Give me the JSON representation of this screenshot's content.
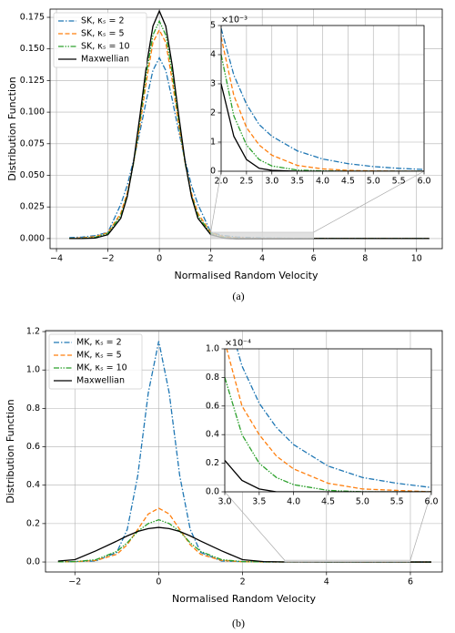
{
  "chart_data": [
    {
      "type": "line",
      "xlabel": "Normalised Random Velocity",
      "ylabel": "Distribution Function",
      "caption": "(a)",
      "x": [
        -3.5,
        -3,
        -2.5,
        -2,
        -1.5,
        -1.25,
        -1,
        -0.75,
        -0.5,
        -0.25,
        0,
        0.25,
        0.5,
        0.75,
        1,
        1.25,
        1.5,
        2,
        2.5,
        3,
        4,
        6,
        8,
        10.5
      ],
      "series": [
        {
          "name": "SK, κₛ = 2",
          "color": "#1f77b4",
          "linestyle": "dashdot",
          "values": [
            0.0007,
            0.0012,
            0.0023,
            0.0049,
            0.027,
            0.042,
            0.062,
            0.085,
            0.11,
            0.133,
            0.143,
            0.133,
            0.11,
            0.085,
            0.062,
            0.042,
            0.027,
            0.0049,
            0.0023,
            0.0012,
            0.00042,
            6e-05,
            1e-05,
            0
          ]
        },
        {
          "name": "SK, κₛ = 5",
          "color": "#ff7f0e",
          "linestyle": "dashed",
          "values": [
            0.0001,
            0.00055,
            0.0015,
            0.0046,
            0.02,
            0.036,
            0.06,
            0.09,
            0.125,
            0.155,
            0.165,
            0.155,
            0.125,
            0.09,
            0.06,
            0.036,
            0.02,
            0.0046,
            0.0015,
            0.00055,
            8e-05,
            0,
            0,
            0
          ]
        },
        {
          "name": "SK, κₛ = 10",
          "color": "#2ca02c",
          "linestyle": "dashdotdot",
          "values": [
            0,
            0.00018,
            0.0009,
            0.004,
            0.018,
            0.034,
            0.06,
            0.094,
            0.131,
            0.161,
            0.172,
            0.161,
            0.131,
            0.094,
            0.06,
            0.034,
            0.018,
            0.004,
            0.0009,
            0.00018,
            1e-05,
            0,
            0,
            0
          ]
        },
        {
          "name": "Maxwellian",
          "color": "#000000",
          "linestyle": "solid",
          "values": [
            0,
            3e-05,
            0.0004,
            0.003,
            0.016,
            0.033,
            0.061,
            0.098,
            0.137,
            0.168,
            0.18,
            0.168,
            0.137,
            0.098,
            0.061,
            0.033,
            0.016,
            0.003,
            0.0004,
            3e-05,
            0,
            0,
            0,
            0
          ]
        }
      ],
      "xlim": [
        -4.25,
        11
      ],
      "ylim": [
        -0.008,
        0.1815
      ],
      "xticks": [
        {
          "value": -4,
          "label": "−4"
        },
        {
          "value": -2,
          "label": "−2"
        },
        0,
        2,
        4,
        6,
        8,
        10
      ],
      "yticks": [
        {
          "value": 0,
          "label": "0.000"
        },
        {
          "value": 0.025,
          "label": "0.025"
        },
        {
          "value": 0.05,
          "label": "0.050"
        },
        {
          "value": 0.075,
          "label": "0.075"
        },
        {
          "value": 0.1,
          "label": "0.100"
        },
        {
          "value": 0.125,
          "label": "0.125"
        },
        {
          "value": 0.15,
          "label": "0.150"
        },
        {
          "value": 0.175,
          "label": "0.175"
        }
      ],
      "grid": true,
      "legend": "upper left"
    },
    {
      "type": "line",
      "offset_text": "×10⁻³",
      "x": [
        2,
        2.25,
        2.5,
        2.75,
        3,
        3.5,
        4,
        4.5,
        5,
        5.5,
        6
      ],
      "series": [
        {
          "color": "#1f77b4",
          "linestyle": "dashdot",
          "values": [
            0.0049,
            0.0033,
            0.0023,
            0.0016,
            0.0012,
            0.0007,
            0.00042,
            0.00026,
            0.00016,
            0.0001,
            6e-05
          ]
        },
        {
          "color": "#ff7f0e",
          "linestyle": "dashed",
          "values": [
            0.0046,
            0.0026,
            0.0015,
            0.0009,
            0.00055,
            0.0002,
            8e-05,
            3e-05,
            1e-05,
            0,
            0
          ]
        },
        {
          "color": "#2ca02c",
          "linestyle": "dashdotdot",
          "values": [
            0.004,
            0.0019,
            0.0009,
            0.0004,
            0.00018,
            4e-05,
            1e-05,
            0,
            0,
            0,
            0
          ]
        },
        {
          "color": "#000000",
          "linestyle": "solid",
          "values": [
            0.003,
            0.0012,
            0.0004,
            0.0001,
            3e-05,
            0,
            0,
            0,
            0,
            0,
            0
          ]
        }
      ],
      "xlim": [
        2,
        6
      ],
      "ylim": [
        0,
        0.005
      ],
      "xticks": [
        {
          "value": 2,
          "label": "2.0"
        },
        {
          "value": 2.5,
          "label": "2.5"
        },
        {
          "value": 3,
          "label": "3.0"
        },
        {
          "value": 3.5,
          "label": "3.5"
        },
        {
          "value": 4,
          "label": "4.0"
        },
        {
          "value": 4.5,
          "label": "4.5"
        },
        {
          "value": 5,
          "label": "5.0"
        },
        {
          "value": 5.5,
          "label": "5.5"
        },
        {
          "value": 6,
          "label": "6.0"
        }
      ],
      "yticks": [
        0,
        {
          "value": 0.001,
          "label": "1"
        },
        {
          "value": 0.002,
          "label": "2"
        },
        {
          "value": 0.003,
          "label": "3"
        },
        {
          "value": 0.004,
          "label": "4"
        },
        {
          "value": 0.005,
          "label": "5"
        }
      ],
      "grid": true
    },
    {
      "type": "line",
      "xlabel": "Normalised Random Velocity",
      "ylabel": "Distribution Function",
      "caption": "(b)",
      "x": [
        -2.4,
        -2,
        -1.5,
        -1,
        -0.75,
        -0.5,
        -0.25,
        0,
        0.25,
        0.5,
        0.75,
        1,
        1.5,
        2,
        2.5,
        3,
        4,
        5,
        6,
        6.5
      ],
      "series": [
        {
          "name": "MK, κₛ = 2",
          "color": "#1f77b4",
          "linestyle": "dashdot",
          "values": [
            0.0008,
            0.002,
            0.005,
            0.05,
            0.17,
            0.45,
            0.88,
            1.15,
            0.88,
            0.45,
            0.17,
            0.05,
            0.005,
            0.002,
            0.0005,
            0.00013,
            3.3e-05,
            1e-05,
            3e-06,
            2e-06
          ]
        },
        {
          "name": "MK, κₛ = 5",
          "color": "#ff7f0e",
          "linestyle": "dashed",
          "values": [
            0.0008,
            0.0015,
            0.008,
            0.04,
            0.09,
            0.17,
            0.25,
            0.28,
            0.25,
            0.17,
            0.09,
            0.04,
            0.008,
            0.0015,
            0.0003,
            0.000105,
            1.6e-05,
            2e-06,
            0,
            0
          ]
        },
        {
          "name": "MK, κₛ = 10",
          "color": "#2ca02c",
          "linestyle": "dashdotdot",
          "values": [
            0.0007,
            0.002,
            0.012,
            0.055,
            0.1,
            0.16,
            0.2,
            0.22,
            0.2,
            0.16,
            0.1,
            0.055,
            0.012,
            0.002,
            0.0003,
            8e-05,
            5e-06,
            0,
            0,
            0
          ]
        },
        {
          "name": "Maxwellian",
          "color": "#000000",
          "linestyle": "solid",
          "values": [
            0.005,
            0.012,
            0.058,
            0.109,
            0.136,
            0.159,
            0.174,
            0.18,
            0.174,
            0.159,
            0.136,
            0.109,
            0.058,
            0.012,
            0.002,
            2.2e-05,
            0,
            0,
            0,
            0
          ]
        }
      ],
      "xlim": [
        -2.7,
        6.76
      ],
      "ylim": [
        -0.052,
        1.205
      ],
      "xticks": [
        {
          "value": -2,
          "label": "−2"
        },
        0,
        2,
        4,
        6
      ],
      "yticks": [
        {
          "value": 0,
          "label": "0.0"
        },
        {
          "value": 0.2,
          "label": "0.2"
        },
        {
          "value": 0.4,
          "label": "0.4"
        },
        {
          "value": 0.6,
          "label": "0.6"
        },
        {
          "value": 0.8,
          "label": "0.8"
        },
        {
          "value": 1.0,
          "label": "1.0"
        },
        {
          "value": 1.2,
          "label": "1.2"
        }
      ],
      "grid": true,
      "legend": "upper left"
    },
    {
      "type": "line",
      "offset_text": "×10⁻⁴",
      "x": [
        3,
        3.25,
        3.5,
        3.75,
        4,
        4.5,
        5,
        5.5,
        6
      ],
      "series": [
        {
          "color": "#1f77b4",
          "linestyle": "dashdot",
          "values": [
            0.00013,
            8.8e-05,
            6.2e-05,
            4.5e-05,
            3.3e-05,
            1.8e-05,
            1e-05,
            6e-06,
            3e-06
          ]
        },
        {
          "color": "#ff7f0e",
          "linestyle": "dashed",
          "values": [
            0.000105,
            6e-05,
            4e-05,
            2.5e-05,
            1.6e-05,
            6e-06,
            2e-06,
            1e-06,
            0
          ]
        },
        {
          "color": "#2ca02c",
          "linestyle": "dashdotdot",
          "values": [
            8e-05,
            4e-05,
            2e-05,
            1e-05,
            5e-06,
            1e-06,
            0,
            0,
            0
          ]
        },
        {
          "color": "#000000",
          "linestyle": "solid",
          "values": [
            2.2e-05,
            8e-06,
            2e-06,
            0,
            0,
            0,
            0,
            0,
            0
          ]
        }
      ],
      "xlim": [
        3,
        6
      ],
      "ylim": [
        0,
        0.0001
      ],
      "xticks": [
        {
          "value": 3,
          "label": "3.0"
        },
        {
          "value": 3.5,
          "label": "3.5"
        },
        {
          "value": 4,
          "label": "4.0"
        },
        {
          "value": 4.5,
          "label": "4.5"
        },
        {
          "value": 5,
          "label": "5.0"
        },
        {
          "value": 5.5,
          "label": "5.5"
        },
        {
          "value": 6,
          "label": "6.0"
        }
      ],
      "yticks": [
        {
          "value": 0,
          "label": "0.0"
        },
        {
          "value": 2e-05,
          "label": "0.2"
        },
        {
          "value": 4e-05,
          "label": "0.4"
        },
        {
          "value": 6e-05,
          "label": "0.6"
        },
        {
          "value": 8e-05,
          "label": "0.8"
        },
        {
          "value": 0.0001,
          "label": "1.0"
        }
      ],
      "grid": true
    }
  ]
}
